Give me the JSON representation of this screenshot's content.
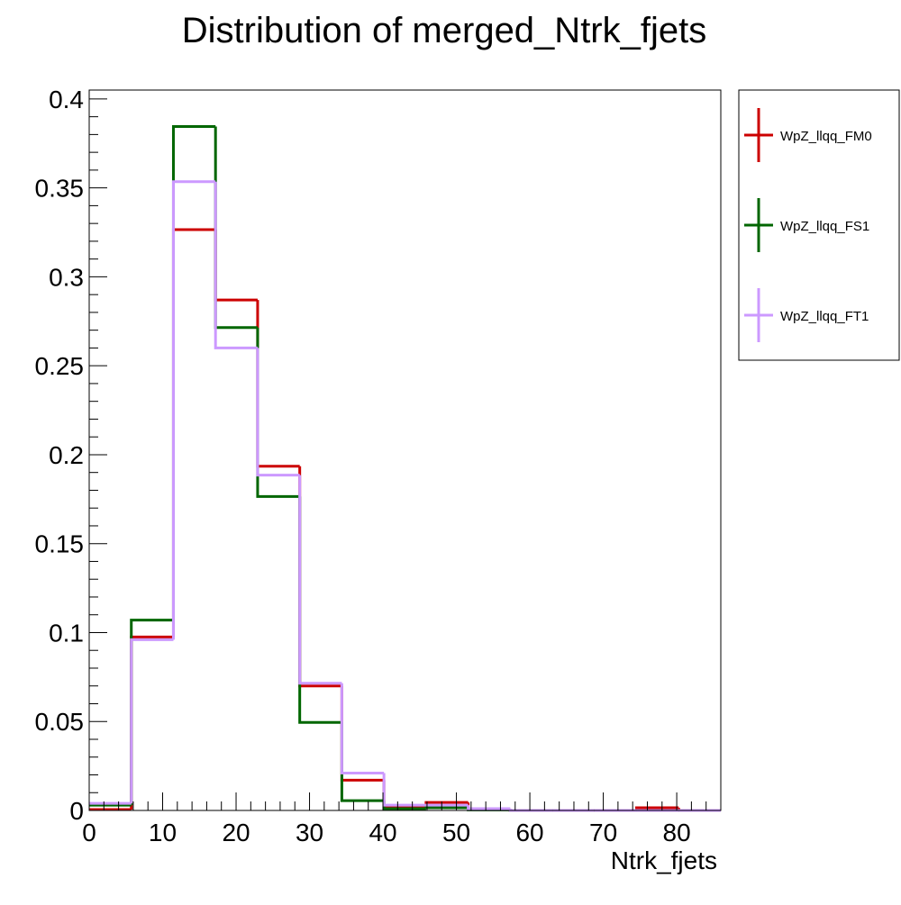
{
  "chart_data": {
    "type": "step-histogram",
    "title": "Distribution of merged_Ntrk_fjets",
    "xlabel": "Ntrk_fjets",
    "ylabel": "",
    "xlim": [
      0,
      86
    ],
    "ylim": [
      0,
      0.405
    ],
    "x_ticks": [
      0,
      10,
      20,
      30,
      40,
      50,
      60,
      70,
      80
    ],
    "x_tick_labels": [
      "0",
      "10",
      "20",
      "30",
      "40",
      "50",
      "60",
      "70",
      "80"
    ],
    "y_ticks": [
      0,
      0.05,
      0.1,
      0.15,
      0.2,
      0.25,
      0.3,
      0.35,
      0.4
    ],
    "y_tick_labels": [
      "0",
      "0.05",
      "0.1",
      "0.15",
      "0.2",
      "0.25",
      "0.3",
      "0.35",
      "0.4"
    ],
    "bin_edges": [
      0,
      5.733,
      11.467,
      17.2,
      22.933,
      28.667,
      34.4,
      40.133,
      45.867,
      51.6,
      57.333,
      63.067,
      68.8,
      74.533,
      80.267,
      86
    ],
    "legend_position": "right",
    "series": [
      {
        "name": "WpZ_llqq_FM0",
        "color": "#cc0000",
        "values": [
          0.0005,
          0.0975,
          0.3265,
          0.287,
          0.1935,
          0.07,
          0.017,
          0.002,
          0.0045,
          0.0005,
          0.0,
          0.0,
          0.0,
          0.0015,
          0.0
        ]
      },
      {
        "name": "WpZ_llqq_FS1",
        "color": "#006600",
        "values": [
          0.003,
          0.107,
          0.3845,
          0.2715,
          0.1765,
          0.0495,
          0.0055,
          0.001,
          0.0015,
          0.0003,
          0.0,
          0.0,
          0.0,
          0.0,
          0.0
        ]
      },
      {
        "name": "WpZ_llqq_FT1",
        "color": "#cc99ff",
        "values": [
          0.004,
          0.096,
          0.3535,
          0.26,
          0.1885,
          0.0715,
          0.021,
          0.003,
          0.003,
          0.001,
          0.0,
          0.0,
          0.0,
          0.0,
          0.0
        ]
      }
    ]
  }
}
